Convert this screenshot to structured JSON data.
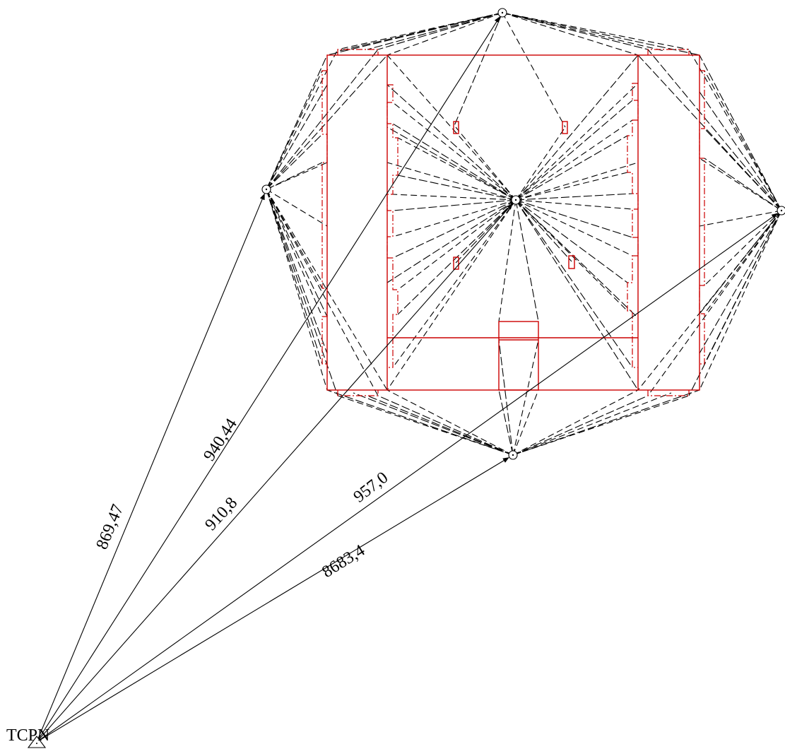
{
  "base_station": {
    "name": "TCPN",
    "symbol": "triangle-station-icon"
  },
  "stations": [
    {
      "id": "west"
    },
    {
      "id": "north"
    },
    {
      "id": "center"
    },
    {
      "id": "east"
    },
    {
      "id": "south"
    }
  ],
  "measurements": [
    {
      "target": "west",
      "label": "869,47"
    },
    {
      "target": "north",
      "label": "940,44"
    },
    {
      "target": "center",
      "label": "910,8"
    },
    {
      "target": "east",
      "label": "957,0"
    },
    {
      "target": "south",
      "label": "8683,4"
    }
  ],
  "colors": {
    "structure": "#cc0000",
    "lines": "#000000",
    "background": "#ffffff"
  }
}
